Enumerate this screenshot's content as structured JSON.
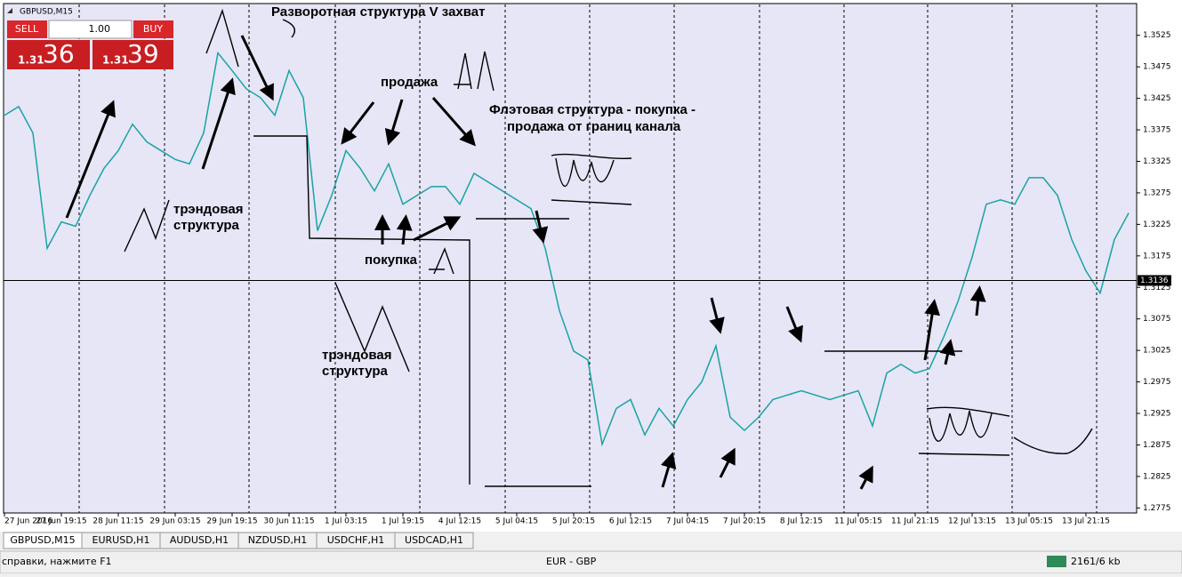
{
  "chart_data": {
    "type": "line",
    "title": "GBPUSD,M15",
    "color": "#1aa3a3",
    "categories": [
      "27 Jun 2016",
      null,
      null,
      null,
      "27 Jun 19:15",
      null,
      null,
      null,
      "28 Jun 11:15",
      null,
      null,
      null,
      "29 Jun 03:15",
      null,
      null,
      null,
      "29 Jun 19:15",
      null,
      null,
      null,
      "30 Jun 11:15",
      null,
      null,
      null,
      "1 Jul 03:15",
      null,
      null,
      null,
      "1 Jul 19:15",
      null,
      null,
      null,
      "4 Jul 12:15",
      null,
      null,
      null,
      "5 Jul 04:15",
      null,
      null,
      null,
      "5 Jul 20:15",
      null,
      null,
      null,
      "6 Jul 12:15",
      null,
      null,
      null,
      "7 Jul 04:15",
      null,
      null,
      null,
      "7 Jul 20:15",
      null,
      null,
      null,
      "8 Jul 12:15",
      null,
      null,
      null,
      "11 Jul 05:15",
      null,
      null,
      null,
      "11 Jul 21:15",
      null,
      null,
      null,
      "12 Jul 13:15",
      null,
      null,
      null,
      "13 Jul 05:15",
      null,
      null,
      null,
      "13 Jul 21:15",
      null,
      null,
      null
    ],
    "values": [
      1.3398,
      1.3412,
      1.337,
      1.3187,
      1.3229,
      1.3222,
      1.3271,
      1.3314,
      1.3342,
      1.3384,
      1.3356,
      1.3342,
      1.3328,
      1.3321,
      1.337,
      1.3497,
      1.3469,
      1.344,
      1.3426,
      1.3398,
      1.3469,
      1.3426,
      1.3215,
      1.3271,
      1.3342,
      1.3314,
      1.3278,
      1.3321,
      1.3257,
      1.3271,
      1.3285,
      1.3285,
      1.3257,
      1.3306,
      1.3292,
      1.3278,
      1.3264,
      1.325,
      1.3187,
      1.3088,
      1.3024,
      1.301,
      1.2876,
      1.2933,
      1.2947,
      1.2891,
      1.2933,
      1.2905,
      1.2947,
      1.2975,
      1.3032,
      1.2919,
      1.2898,
      1.2919,
      1.2947,
      1.2954,
      1.2961,
      1.2954,
      1.2947,
      1.2954,
      1.2961,
      1.2905,
      1.2989,
      1.3003,
      1.2989,
      1.2996,
      1.3046,
      1.3102,
      1.3173,
      1.3257,
      1.3264,
      1.3257,
      1.3299,
      1.3299,
      1.3271,
      1.3201,
      1.3151,
      1.3116,
      1.3201,
      1.3243
    ],
    "ylim": [
      1.2767,
      1.3574
    ],
    "yticks": [
      1.2775,
      1.2825,
      1.2875,
      1.2925,
      1.2975,
      1.3025,
      1.3075,
      1.3125,
      1.3175,
      1.3225,
      1.3275,
      1.3325,
      1.3375,
      1.3425,
      1.3475,
      1.3525
    ],
    "current_price": 1.3136
  },
  "trade_panel": {
    "sell": "SELL",
    "lot": "1.00",
    "buy": "BUY",
    "bid_prefix": "1.31",
    "bid_big": "36",
    "ask_prefix": "1.31",
    "ask_big": "39"
  },
  "annotations": [
    "Разворотная структура V захват",
    "продажа",
    "Флэтовая структура - покупка -",
    "продажа от границ канала",
    "трэндовая",
    "структура",
    "покупка",
    "трэндовая",
    "структура"
  ],
  "tabs": [
    "GBPUSD,M15",
    "EURUSD,H1",
    "AUDUSD,H1",
    "NZDUSD,H1",
    "USDCHF,H1",
    "USDCAD,H1"
  ],
  "status_bar": {
    "help": "справки, нажмите F1",
    "profile": "EUR - GBP",
    "traffic": "2161/6 kb"
  }
}
